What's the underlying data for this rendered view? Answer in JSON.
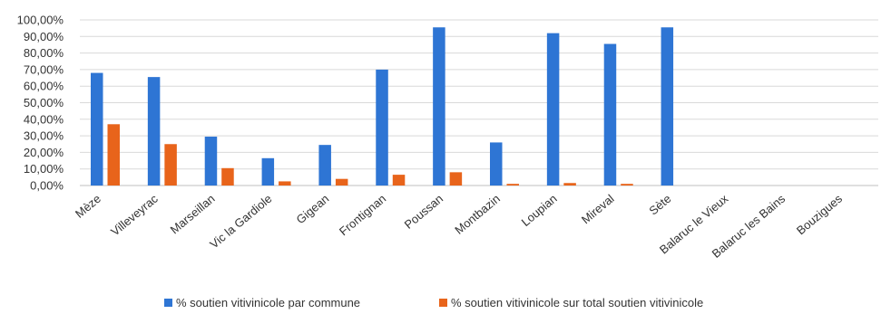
{
  "chart_data": {
    "type": "bar",
    "categories": [
      "Mèze",
      "Villeveyrac",
      "Marseillan",
      "Vic la Gardiole",
      "Gigean",
      "Frontignan",
      "Poussan",
      "Montbazin",
      "Loupian",
      "Mireval",
      "Sète",
      "Balaruc le Vieux",
      "Balaruc les Bains",
      "Bouzigues"
    ],
    "series": [
      {
        "name": "% soutien vitivinicole par commune",
        "color": "#2E75D4",
        "values": [
          68,
          65.5,
          29.5,
          16.5,
          24.5,
          70,
          95.5,
          26,
          92,
          85.5,
          95.5,
          0,
          0,
          0
        ]
      },
      {
        "name": "% soutien vitivinicole sur total soutien vitivinicole",
        "color": "#E8641B",
        "values": [
          37,
          25,
          10.5,
          2.5,
          4,
          6.5,
          8,
          1,
          1.5,
          1,
          0,
          0,
          0,
          0
        ]
      }
    ],
    "yticks": [
      "0,00%",
      "10,00%",
      "20,00%",
      "30,00%",
      "40,00%",
      "50,00%",
      "60,00%",
      "70,00%",
      "80,00%",
      "90,00%",
      "100,00%"
    ],
    "ylim": [
      0,
      100
    ],
    "grid": true,
    "legend_position": "bottom"
  }
}
